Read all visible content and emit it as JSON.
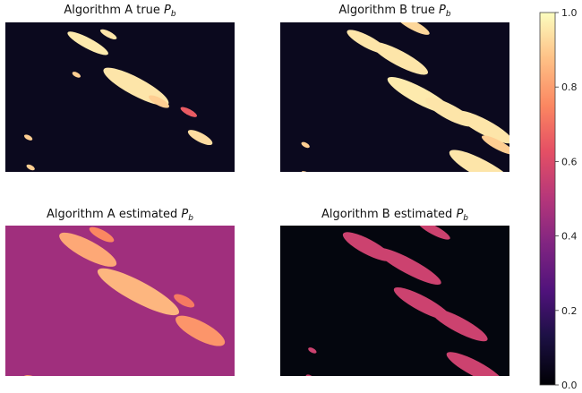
{
  "figure": {
    "colormap": "magma",
    "colorbar": {
      "vmin": 0.0,
      "vmax": 1.0,
      "ticks": [
        "0.0",
        "0.2",
        "0.4",
        "0.6",
        "0.8",
        "1.0"
      ]
    }
  },
  "chart_data": [
    {
      "type": "heatmap",
      "title": "Algorithm A true P_b",
      "title_parts": [
        "Algorithm A true ",
        "P",
        "b"
      ],
      "background_value": 0.05,
      "patches": [
        {
          "cx": 0.36,
          "cy": 0.14,
          "len": 0.1,
          "w": 0.035,
          "v": 0.96
        },
        {
          "cx": 0.45,
          "cy": 0.08,
          "len": 0.04,
          "w": 0.02,
          "v": 0.95
        },
        {
          "cx": 0.31,
          "cy": 0.35,
          "len": 0.02,
          "w": 0.015,
          "v": 0.9
        },
        {
          "cx": 0.57,
          "cy": 0.43,
          "len": 0.16,
          "w": 0.06,
          "v": 0.95
        },
        {
          "cx": 0.67,
          "cy": 0.53,
          "len": 0.05,
          "w": 0.025,
          "v": 0.9
        },
        {
          "cx": 0.85,
          "cy": 0.77,
          "len": 0.06,
          "w": 0.03,
          "v": 0.93
        },
        {
          "cx": 0.8,
          "cy": 0.6,
          "len": 0.04,
          "w": 0.02,
          "v": 0.65
        },
        {
          "cx": 0.1,
          "cy": 0.77,
          "len": 0.02,
          "w": 0.015,
          "v": 0.9
        },
        {
          "cx": 0.11,
          "cy": 0.97,
          "len": 0.02,
          "w": 0.015,
          "v": 0.9
        }
      ]
    },
    {
      "type": "heatmap",
      "title": "Algorithm B true P_b",
      "title_parts": [
        "Algorithm B true ",
        "P",
        "b"
      ],
      "background_value": 0.05,
      "patches": [
        {
          "cx": 0.38,
          "cy": 0.13,
          "len": 0.1,
          "w": 0.04,
          "v": 0.95
        },
        {
          "cx": 0.52,
          "cy": 0.24,
          "len": 0.14,
          "w": 0.05,
          "v": 0.95
        },
        {
          "cx": 0.61,
          "cy": 0.49,
          "len": 0.16,
          "w": 0.055,
          "v": 0.96
        },
        {
          "cx": 0.74,
          "cy": 0.6,
          "len": 0.12,
          "w": 0.05,
          "v": 0.95
        },
        {
          "cx": 0.89,
          "cy": 0.7,
          "len": 0.14,
          "w": 0.05,
          "v": 0.95
        },
        {
          "cx": 0.88,
          "cy": 0.98,
          "len": 0.16,
          "w": 0.06,
          "v": 0.95
        },
        {
          "cx": 0.95,
          "cy": 0.82,
          "len": 0.08,
          "w": 0.03,
          "v": 0.9
        },
        {
          "cx": 0.11,
          "cy": 0.82,
          "len": 0.02,
          "w": 0.015,
          "v": 0.9
        },
        {
          "cx": 0.12,
          "cy": 1.02,
          "len": 0.03,
          "w": 0.015,
          "v": 0.9
        },
        {
          "cx": 0.58,
          "cy": 0.02,
          "len": 0.08,
          "w": 0.03,
          "v": 0.92
        }
      ]
    },
    {
      "type": "heatmap",
      "title": "Algorithm A estimated P_b",
      "title_parts": [
        "Algorithm A estimated ",
        "P",
        "b"
      ],
      "background_value": 0.45,
      "patches": [
        {
          "cx": 0.36,
          "cy": 0.16,
          "len": 0.14,
          "w": 0.06,
          "v": 0.82
        },
        {
          "cx": 0.42,
          "cy": 0.06,
          "len": 0.06,
          "w": 0.03,
          "v": 0.75
        },
        {
          "cx": 0.58,
          "cy": 0.44,
          "len": 0.2,
          "w": 0.07,
          "v": 0.85
        },
        {
          "cx": 0.85,
          "cy": 0.7,
          "len": 0.12,
          "w": 0.06,
          "v": 0.78
        },
        {
          "cx": 0.78,
          "cy": 0.5,
          "len": 0.05,
          "w": 0.03,
          "v": 0.72
        },
        {
          "cx": 0.13,
          "cy": 1.05,
          "len": 0.06,
          "w": 0.04,
          "v": 0.8
        }
      ]
    },
    {
      "type": "heatmap",
      "title": "Algorithm B estimated P_b",
      "title_parts": [
        "Algorithm B estimated ",
        "P",
        "b"
      ],
      "background_value": 0.02,
      "patches": [
        {
          "cx": 0.38,
          "cy": 0.14,
          "len": 0.12,
          "w": 0.05,
          "v": 0.56
        },
        {
          "cx": 0.56,
          "cy": 0.27,
          "len": 0.16,
          "w": 0.05,
          "v": 0.56
        },
        {
          "cx": 0.62,
          "cy": 0.52,
          "len": 0.14,
          "w": 0.05,
          "v": 0.56
        },
        {
          "cx": 0.78,
          "cy": 0.66,
          "len": 0.14,
          "w": 0.05,
          "v": 0.56
        },
        {
          "cx": 0.85,
          "cy": 0.95,
          "len": 0.14,
          "w": 0.05,
          "v": 0.56
        },
        {
          "cx": 0.67,
          "cy": 0.03,
          "len": 0.08,
          "w": 0.03,
          "v": 0.56
        },
        {
          "cx": 0.14,
          "cy": 0.83,
          "len": 0.02,
          "w": 0.015,
          "v": 0.56
        },
        {
          "cx": 0.13,
          "cy": 1.01,
          "len": 0.02,
          "w": 0.015,
          "v": 0.56
        }
      ]
    }
  ]
}
